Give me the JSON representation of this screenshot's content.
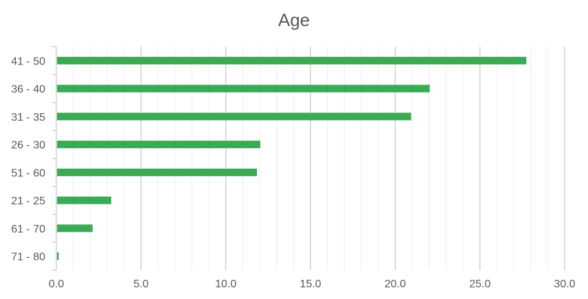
{
  "chart_data": {
    "type": "bar",
    "orientation": "horizontal",
    "title": "Age",
    "xlabel": "",
    "ylabel": "",
    "categories": [
      "41 - 50",
      "36 - 40",
      "31 - 35",
      "26 - 30",
      "51 - 60",
      "21 - 25",
      "61 - 70",
      "71 - 80"
    ],
    "values": [
      27.7,
      22.0,
      20.9,
      12.0,
      11.8,
      3.2,
      2.1,
      0.1
    ],
    "xlim": [
      0,
      30
    ],
    "xticks": [
      "0.0",
      "5.0",
      "10.0",
      "15.0",
      "20.0",
      "25.0",
      "30.0"
    ],
    "grid": "vertical major and minor",
    "legend": "none",
    "bar_color": "#3aaa55",
    "major_grid_color": "#d0d0d0",
    "minor_grid_color": "#ececec",
    "text_color": "#595959"
  }
}
